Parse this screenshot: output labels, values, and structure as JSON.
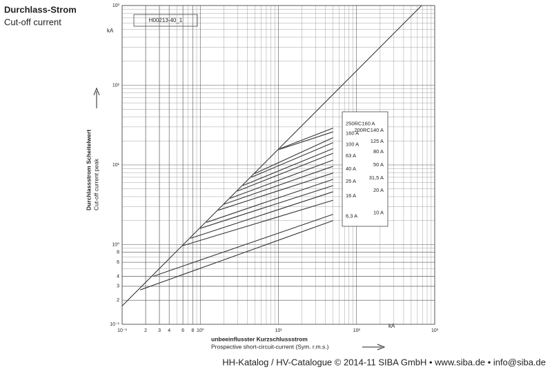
{
  "chart_data": {
    "type": "line",
    "title": "Durchlass-Strom",
    "subtitle": "Cut-off current",
    "reference": "H00213-40_1",
    "y_unit": "kA",
    "x_unit": "kA",
    "ylabel": [
      "Durchlassstrom Scheitelwert",
      "Cut-off current   peak"
    ],
    "xlabel": [
      "unbeeinflusster Kurzschlussstrom",
      "Prospective short-circuit-current (Sym. r.m.s.)"
    ],
    "log_scale": true,
    "grid": true,
    "xlim": [
      0.1,
      1000
    ],
    "ylim": [
      0.1,
      1000
    ],
    "xticks": [
      {
        "value": 0.1,
        "label": "10⁻¹"
      },
      {
        "value": 0.2,
        "label": "2"
      },
      {
        "value": 0.3,
        "label": "3"
      },
      {
        "value": 0.4,
        "label": "4"
      },
      {
        "value": 0.6,
        "label": "6"
      },
      {
        "value": 0.8,
        "label": "8"
      },
      {
        "value": 1,
        "label": "10⁰"
      },
      {
        "value": 10,
        "label": "10¹"
      },
      {
        "value": 100,
        "label": "10²"
      },
      {
        "value": 1000,
        "label": "10³"
      }
    ],
    "yticks": [
      {
        "value": 0.1,
        "label": "10⁻¹"
      },
      {
        "value": 0.2,
        "label": "2"
      },
      {
        "value": 0.3,
        "label": "3"
      },
      {
        "value": 0.4,
        "label": "4"
      },
      {
        "value": 0.6,
        "label": "6"
      },
      {
        "value": 0.8,
        "label": "8"
      },
      {
        "value": 1,
        "label": "10⁰"
      },
      {
        "value": 10,
        "label": "10¹"
      },
      {
        "value": 100,
        "label": "10²"
      },
      {
        "value": 1000,
        "label": "10³"
      }
    ],
    "diagonal": {
      "color": "#333",
      "x": [
        0.1,
        680
      ],
      "values": [
        0.17,
        1000
      ]
    },
    "series": [
      {
        "name": "250RC160 A",
        "color": "#333",
        "x": [
          10.5,
          50
        ],
        "values": [
          16,
          29
        ]
      },
      {
        "name": "200RC140 A",
        "color": "#333",
        "x": [
          10,
          50
        ],
        "values": [
          15.5,
          26
        ]
      },
      {
        "name": "160 A",
        "color": "#333",
        "x": [
          5,
          50
        ],
        "values": [
          7.8,
          22
        ]
      },
      {
        "name": "125 A",
        "color": "#333",
        "x": [
          4.5,
          50
        ],
        "values": [
          7,
          19
        ]
      },
      {
        "name": "100 A",
        "color": "#333",
        "x": [
          3.5,
          50
        ],
        "values": [
          5.5,
          16
        ]
      },
      {
        "name": "80 A",
        "color": "#333",
        "x": [
          3,
          50
        ],
        "values": [
          4.7,
          14
        ]
      },
      {
        "name": "63 A",
        "color": "#333",
        "x": [
          2.4,
          50
        ],
        "values": [
          3.8,
          11.5
        ]
      },
      {
        "name": "50 A",
        "color": "#333",
        "x": [
          2,
          50
        ],
        "values": [
          3.2,
          9.6
        ]
      },
      {
        "name": "40 A",
        "color": "#333",
        "x": [
          1.7,
          50
        ],
        "values": [
          2.7,
          7.9
        ]
      },
      {
        "name": "31,5 A",
        "color": "#333",
        "x": [
          1.2,
          50
        ],
        "values": [
          1.9,
          6.6
        ]
      },
      {
        "name": "25 A",
        "color": "#333",
        "x": [
          1,
          50
        ],
        "values": [
          1.6,
          5.5
        ]
      },
      {
        "name": "20 A",
        "color": "#333",
        "x": [
          0.75,
          50
        ],
        "values": [
          1.2,
          4.6
        ]
      },
      {
        "name": "16 A",
        "color": "#333",
        "x": [
          0.6,
          50
        ],
        "values": [
          0.97,
          3.6
        ]
      },
      {
        "name": "10 A",
        "color": "#333",
        "x": [
          0.25,
          50
        ],
        "values": [
          0.4,
          2.4
        ]
      },
      {
        "name": "6,3 A",
        "color": "#333",
        "x": [
          0.17,
          50
        ],
        "values": [
          0.27,
          2
        ]
      }
    ]
  },
  "footer": "HH-Katalog / HV-Catalogue © 2014-11 SIBA GmbH • www.siba.de • info@siba.de"
}
